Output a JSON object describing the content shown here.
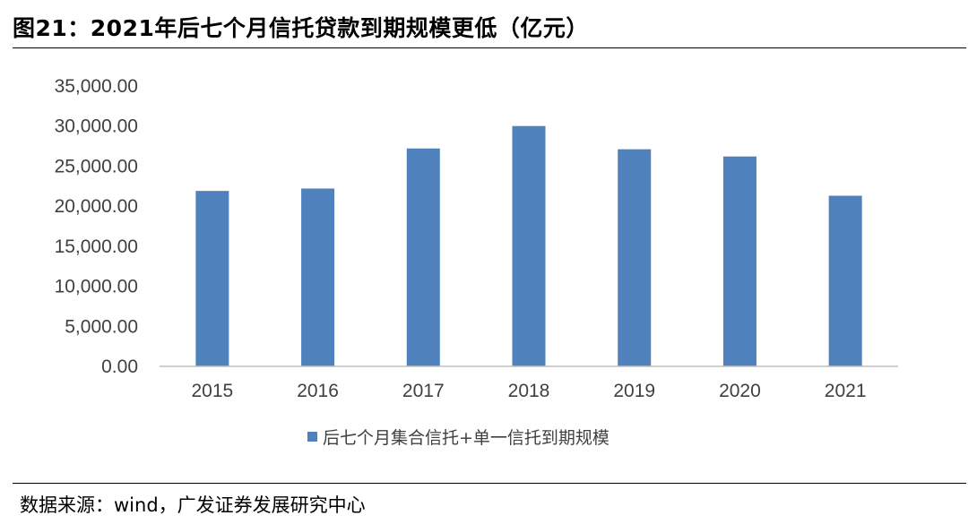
{
  "header": {
    "title": "图21：2021年后七个月信托贷款到期规模更低（亿元）"
  },
  "footer": {
    "source": "数据来源：wind，广发证券发展研究中心"
  },
  "colors": {
    "bar": "#4f81bd",
    "axis": "#bfbfbf",
    "text": "#404040"
  },
  "chart_data": {
    "type": "bar",
    "categories": [
      "2015",
      "2016",
      "2017",
      "2018",
      "2019",
      "2020",
      "2021"
    ],
    "series": [
      {
        "name": "后七个月集合信托+单一信托到期规模",
        "values": [
          21900,
          22200,
          27200,
          30000,
          27100,
          26200,
          21300
        ]
      }
    ],
    "ylim": [
      0,
      35000
    ],
    "yticks": [
      "0.00",
      "5,000.00",
      "10,000.00",
      "15,000.00",
      "20,000.00",
      "25,000.00",
      "30,000.00",
      "35,000.00"
    ],
    "grid": false,
    "legend_position": "bottom"
  }
}
